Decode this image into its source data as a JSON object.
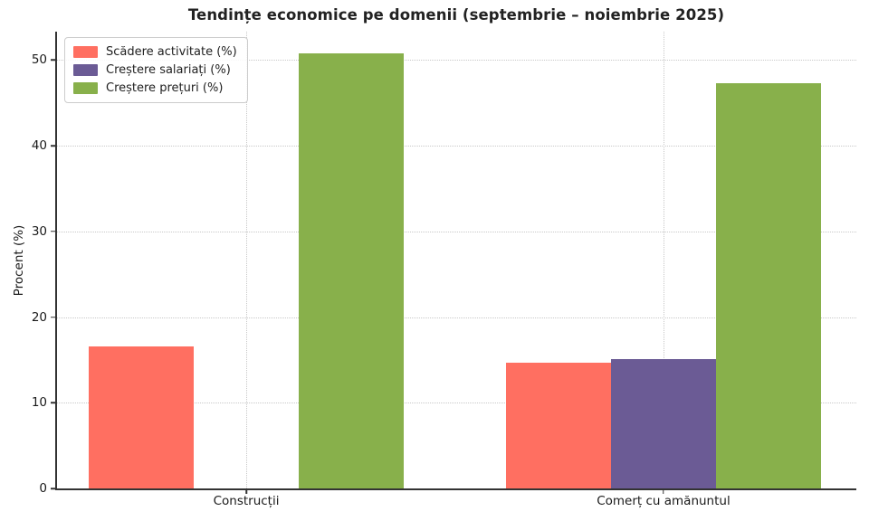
{
  "title": "Tendințe economice pe domenii (septembrie – noiembrie 2025)",
  "chart_data": {
    "type": "bar",
    "title": "Tendințe economice pe domenii (septembrie – noiembrie 2025)",
    "xlabel": "",
    "ylabel": "Procent (%)",
    "categories": [
      "Construcții",
      "Comerț cu amănuntul"
    ],
    "series": [
      {
        "name": "Scădere activitate (%)",
        "color": "#ff6f61",
        "values": [
          16.6,
          14.7
        ]
      },
      {
        "name": "Creștere salariați (%)",
        "color": "#6b5b95",
        "values": [
          0,
          15.1
        ]
      },
      {
        "name": "Creștere prețuri (%)",
        "color": "#88b04b",
        "values": [
          50.8,
          47.3
        ]
      }
    ],
    "ylim": [
      0,
      53.3
    ],
    "yticks": [
      0,
      10,
      20,
      30,
      40,
      50
    ],
    "grid": true,
    "grid_style": "dotted",
    "legend_position": "upper left",
    "bar_edge": "none"
  }
}
